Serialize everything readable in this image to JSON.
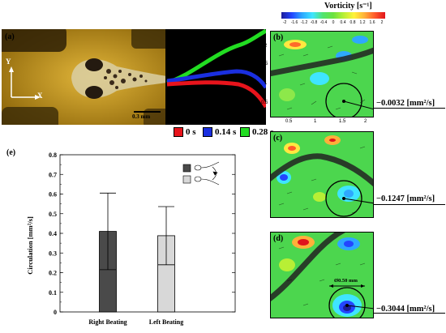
{
  "figure": {
    "panel_labels": {
      "a": "(a)",
      "b": "(b)",
      "c": "(c)",
      "d": "(d)",
      "e": "(e)"
    },
    "axes_gizmo": {
      "y": "Y",
      "x": "X"
    },
    "scale_bar": "0.3 mm",
    "time_legend": [
      {
        "label": "0 s",
        "color": "#e8141c"
      },
      {
        "label": "0.14 s",
        "color": "#1a2fe0"
      },
      {
        "label": "0.28 s",
        "color": "#22dd22"
      }
    ],
    "vorticity": {
      "title": "Vorticity [s⁻¹]",
      "ticks": [
        "-2",
        "-1.6",
        "-1.2",
        "-0.8",
        "-0.4",
        "0",
        "0.4",
        "0.8",
        "1.2",
        "1.6",
        "2"
      ]
    },
    "field_axes": {
      "y_ticks": [
        "2",
        "1.5",
        "1",
        "0.5"
      ],
      "x_ticks": [
        "0.5",
        "1",
        "1.5",
        "2"
      ]
    },
    "circulation_values": {
      "b": "−0.0032 [mm²/s]",
      "c": "−0.1247 [mm²/s]",
      "d": "−0.3044 [mm²/s]"
    },
    "diameter_label": "Ø0.50 mm"
  },
  "chart_data": {
    "type": "bar",
    "categories": [
      "Right Beating",
      "Left Beating"
    ],
    "values": [
      0.41,
      0.388
    ],
    "error": [
      0.195,
      0.148
    ],
    "colors": [
      "#4a4a4a",
      "#d8d8d8"
    ],
    "ylabel": "Circulation [mm²/s]",
    "xlabel": "",
    "ylim": [
      0,
      0.8
    ],
    "yticks": [
      "0",
      "0.1",
      "0.2",
      "0.3",
      "0.4",
      "0.5",
      "0.6",
      "0.7",
      "0.8"
    ],
    "grid": false
  }
}
